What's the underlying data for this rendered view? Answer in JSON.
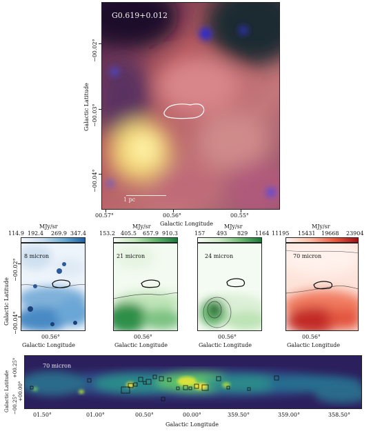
{
  "main": {
    "source_label": "G0.619+0.012",
    "xlabel": "Galactic Longitude",
    "ylabel": "Galactic Latitude",
    "xticks": [
      "00.57°",
      "00.56°",
      "00.55°"
    ],
    "yticks": [
      "−00.02°",
      "−00.03°",
      "−00.04°"
    ],
    "scalebar_label": "1 pc"
  },
  "small_panels": [
    {
      "band": "8 micron",
      "unit": "MJy/sr",
      "ticks": [
        "114.9",
        "192.4",
        "269.9",
        "347.4"
      ],
      "xtick": "00.56°",
      "xlabel": "Galactic Longitude",
      "colormap": "blue"
    },
    {
      "band": "21 micron",
      "unit": "MJy/sr",
      "ticks": [
        "153.2",
        "405.5",
        "657.9",
        "910.3"
      ],
      "xtick": "00.56°",
      "xlabel": "Galactic Longitude",
      "colormap": "green"
    },
    {
      "band": "24 micron",
      "unit": "MJy/sr",
      "ticks": [
        "157",
        "493",
        "829",
        "1164"
      ],
      "xtick": "00.56°",
      "xlabel": "Galactic Longitude",
      "colormap": "green"
    },
    {
      "band": "70 micron",
      "unit": "MJy/sr",
      "ticks": [
        "11195",
        "15431",
        "19668",
        "23904"
      ],
      "xtick": "00.56°",
      "xlabel": "Galactic Longitude",
      "colormap": "red"
    }
  ],
  "small_ylabel": "Galactic Latitude",
  "small_yticks": [
    "−00.02°",
    "−00.04°"
  ],
  "strip": {
    "band": "70 micron",
    "xlabel": "Galactic Longitude",
    "ylabel": "Galactic Latitude",
    "xticks": [
      "01.50°",
      "01.00°",
      "00.50°",
      "00.00°",
      "359.50°",
      "359.00°",
      "358.50°"
    ],
    "yticks": [
      "+00.25°",
      "+00.00°",
      "−00.25°"
    ]
  }
}
